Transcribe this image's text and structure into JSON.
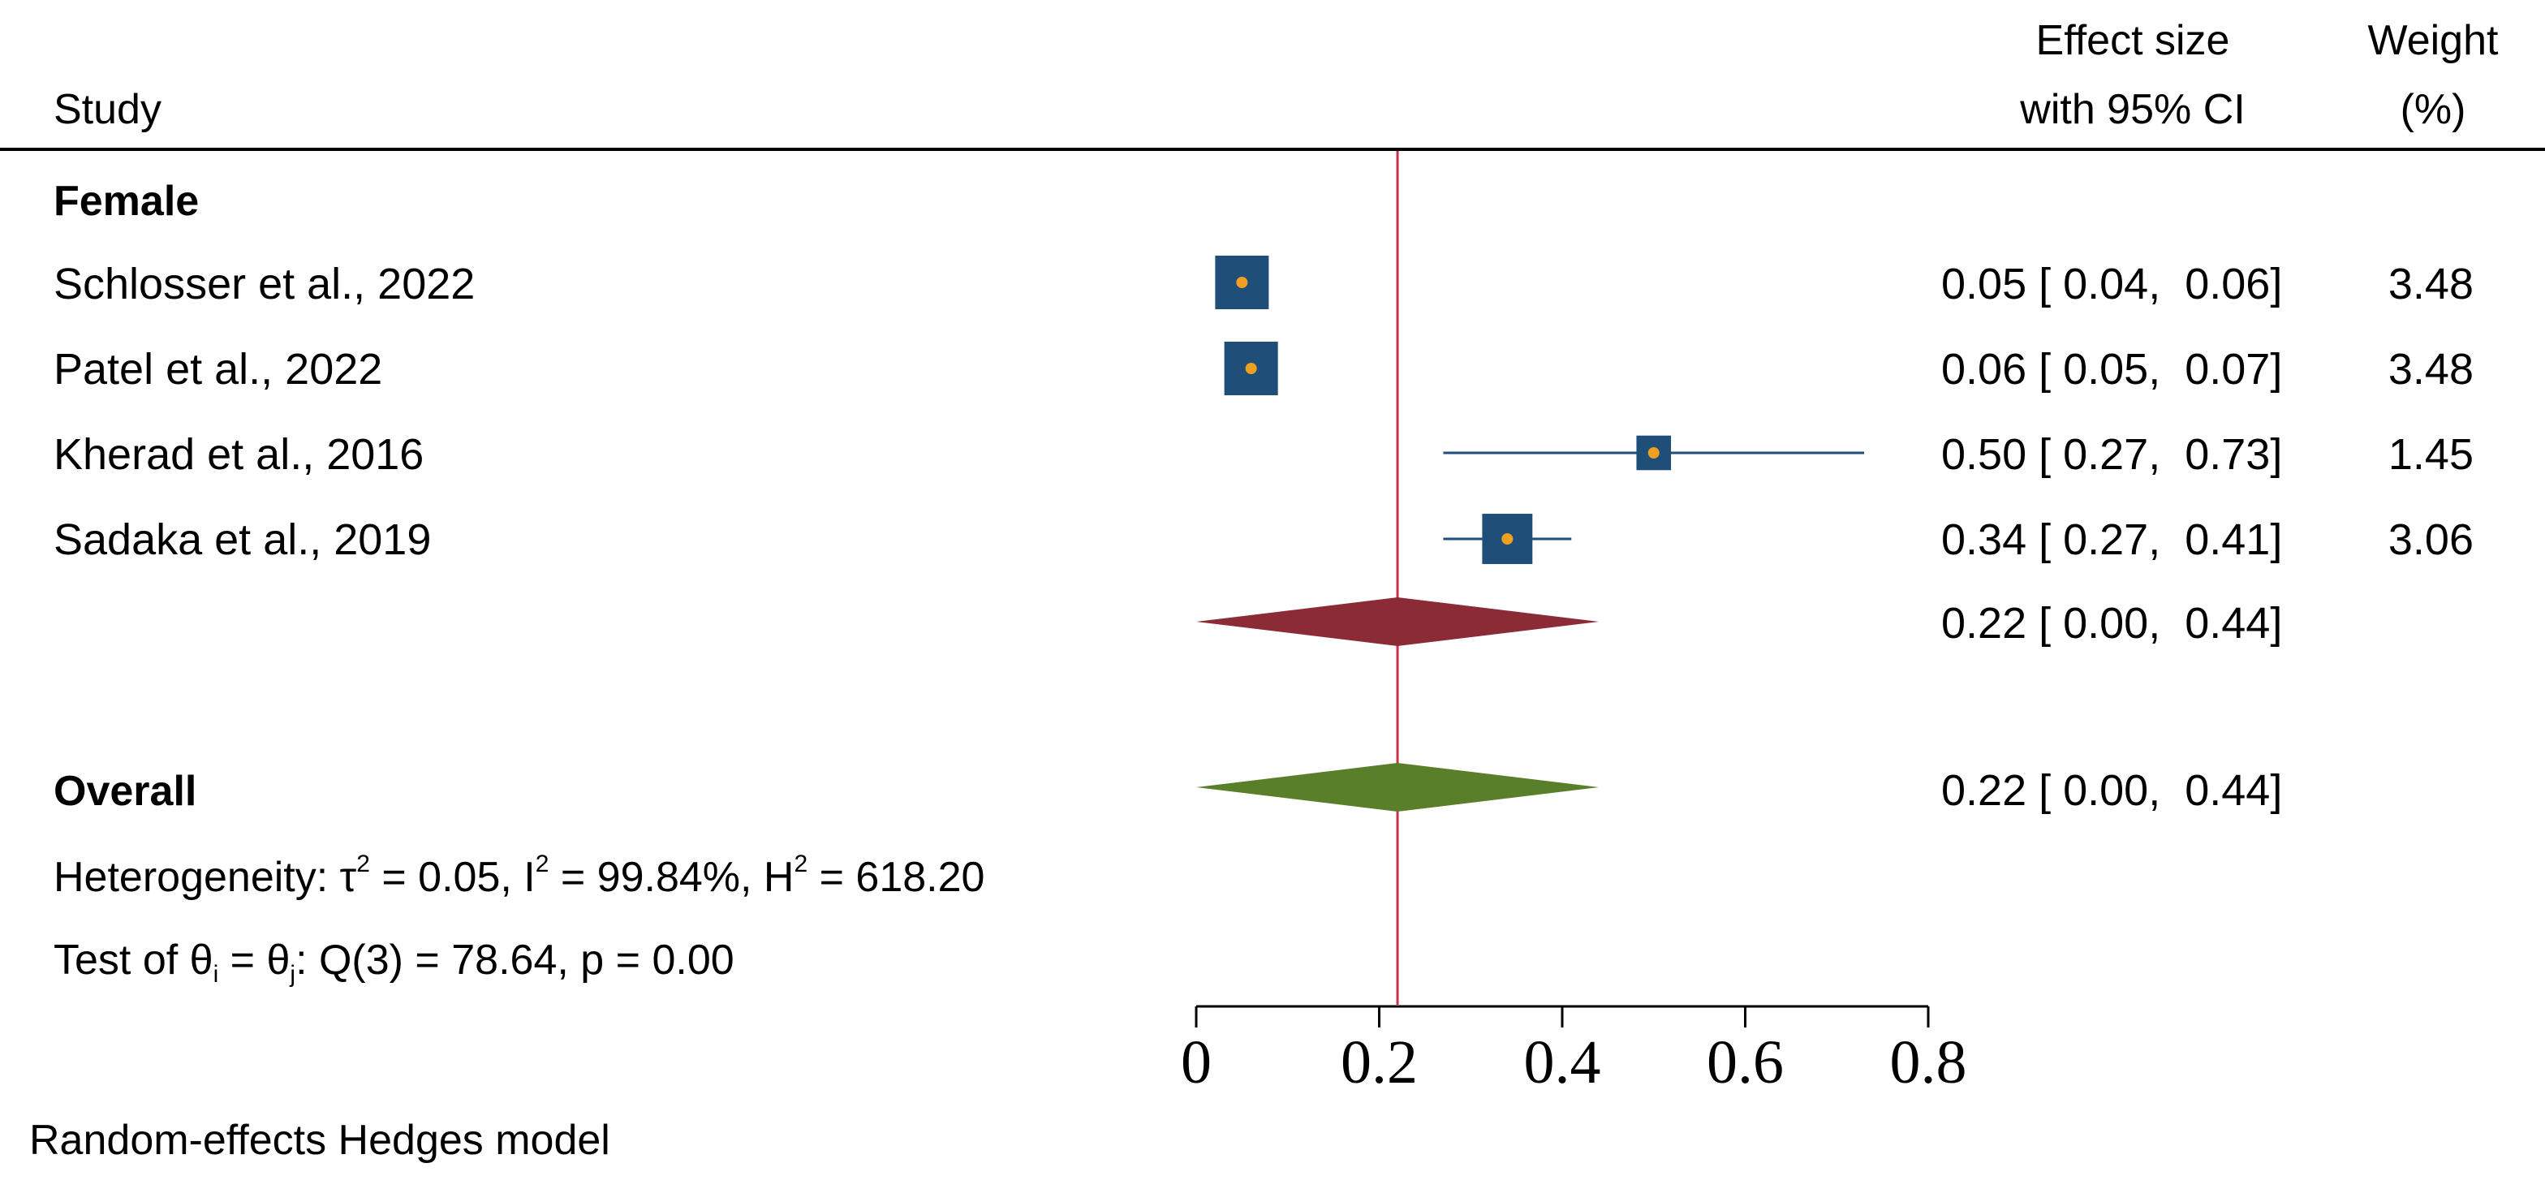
{
  "chart_data": {
    "type": "forest",
    "header": {
      "study": "Study",
      "effect_line1": "Effect size",
      "effect_line2": "with 95% CI",
      "weight_line1": "Weight",
      "weight_line2": "(%)"
    },
    "groups": [
      {
        "name": "Female",
        "studies": [
          {
            "label": "Schlosser et al., 2022",
            "effect": 0.05,
            "ci": [
              0.04,
              0.06
            ],
            "ci_text": "0.05 [ 0.04,  0.06]",
            "weight": "3.48"
          },
          {
            "label": "Patel et al., 2022",
            "effect": 0.06,
            "ci": [
              0.05,
              0.07
            ],
            "ci_text": "0.06 [ 0.05,  0.07]",
            "weight": "3.48"
          },
          {
            "label": "Kherad et al., 2016",
            "effect": 0.5,
            "ci": [
              0.27,
              0.73
            ],
            "ci_text": "0.50 [ 0.27,  0.73]",
            "weight": "1.45"
          },
          {
            "label": "Sadaka et al., 2019",
            "effect": 0.34,
            "ci": [
              0.27,
              0.41
            ],
            "ci_text": "0.34 [ 0.27,  0.41]",
            "weight": "3.06"
          }
        ],
        "subtotal": {
          "effect": 0.22,
          "ci": [
            0.0,
            0.44
          ],
          "ci_text": "0.22 [ 0.00,  0.44]"
        }
      }
    ],
    "overall": {
      "label": "Overall",
      "effect": 0.22,
      "ci": [
        0.0,
        0.44
      ],
      "ci_text": "0.22 [ 0.00,  0.44]"
    },
    "heterogeneity": {
      "prefix": "Heterogeneity: τ",
      "tau2_val": " = 0.05, I",
      "i2_val": " = 99.84%, H",
      "h2_val": " = 618.20",
      "sup": "2"
    },
    "test": {
      "prefix": "Test of θ",
      "sub_i": "i",
      "eq": " = θ",
      "sub_j": "j",
      "rest": ": Q(3) = 78.64, p = 0.00"
    },
    "x_axis": {
      "ticks": [
        0,
        0.2,
        0.4,
        0.6,
        0.8
      ],
      "tick_labels": [
        "0",
        "0.2",
        "0.4",
        "0.6",
        "0.8"
      ],
      "range": [
        0,
        0.8
      ]
    },
    "reference_line": 0.22,
    "footnote": "Random-effects Hedges model",
    "colors": {
      "square": "#1f4e79",
      "point": "#f0a020",
      "subtotal_diamond": "#8b2b36",
      "overall_diamond": "#5a7f2a",
      "ref_line": "#c8334a",
      "ci_line": "#1f4e79"
    }
  }
}
